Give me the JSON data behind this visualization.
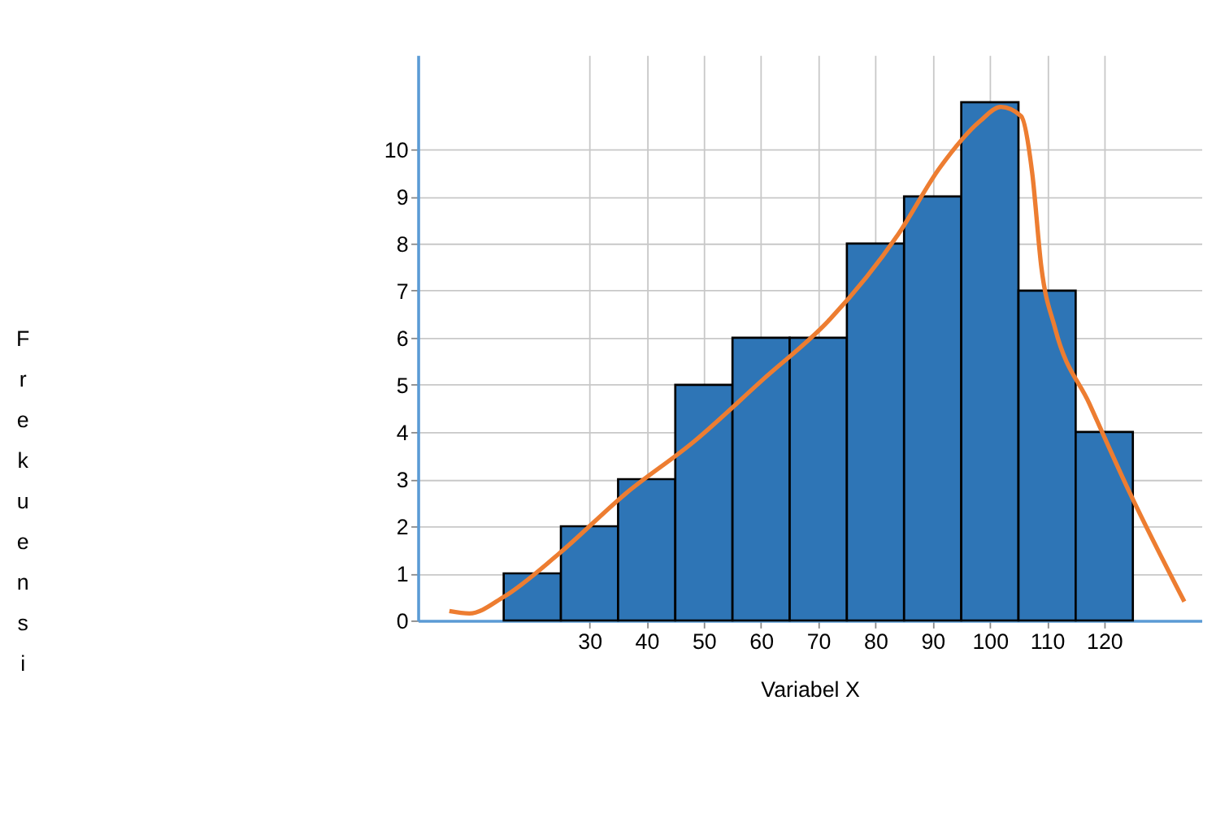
{
  "chart_data": {
    "type": "histogram",
    "xlabel": "Variabel X",
    "ylabel": "Frekuensi",
    "bins": [
      15,
      25,
      35,
      45,
      55,
      65,
      75,
      85,
      95,
      105,
      115,
      125
    ],
    "values": [
      1,
      2,
      3,
      5,
      6,
      6,
      8,
      9,
      11,
      7,
      4
    ],
    "color": "#2e75b6",
    "series": [
      {
        "type": "line",
        "color": "#ed7d31",
        "x": [
          5.5,
          9,
          15,
          24.5,
          36.4,
          48.3,
          60.2,
          72.1,
          84,
          91.2,
          98.3,
          101.9,
          105.5,
          107.4,
          109,
          111.4,
          117.4,
          124.5,
          134
        ],
        "values": [
          0.2,
          0.15,
          0.5,
          1.4,
          2.7,
          3.8,
          5.1,
          6.4,
          8.2,
          9.6,
          10.6,
          10.9,
          10.7,
          9.5,
          7.5,
          6.2,
          4.6,
          2.7,
          0.4
        ]
      }
    ],
    "xlim": [
      0,
      137
    ],
    "ylim": [
      0,
      12
    ],
    "xticks": [
      30,
      40,
      50,
      60,
      70,
      80,
      90,
      100,
      110,
      120
    ],
    "yticks": [
      0,
      1,
      2,
      3,
      4,
      5,
      6,
      7,
      8,
      9,
      10
    ],
    "grid": true
  }
}
